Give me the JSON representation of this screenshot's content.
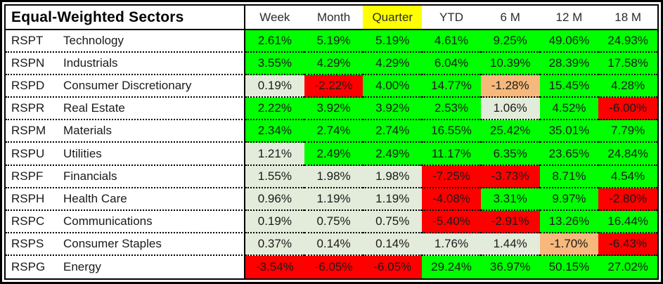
{
  "chart_data": {
    "type": "table",
    "title": "Equal-Weighted Sectors",
    "columns": [
      "Week",
      "Month",
      "Quarter",
      "YTD",
      "6 M",
      "12 M",
      "18 M"
    ],
    "highlighted_column": "Quarter",
    "value_unit": "percent",
    "rows": [
      {
        "ticker": "RSPT",
        "sector": "Technology",
        "values": [
          2.61,
          5.19,
          5.19,
          4.61,
          9.25,
          49.06,
          24.93
        ],
        "cell_colors": [
          "green",
          "green",
          "green",
          "green",
          "green",
          "green",
          "green"
        ]
      },
      {
        "ticker": "RSPN",
        "sector": "Industrials",
        "values": [
          3.55,
          4.29,
          4.29,
          6.04,
          10.39,
          28.39,
          17.58
        ],
        "cell_colors": [
          "green",
          "green",
          "green",
          "green",
          "green",
          "green",
          "green"
        ]
      },
      {
        "ticker": "RSPD",
        "sector": "Consumer Discretionary",
        "values": [
          0.19,
          -2.22,
          4.0,
          14.77,
          -1.28,
          15.45,
          4.28
        ],
        "cell_colors": [
          "pale",
          "red",
          "green",
          "green",
          "orange",
          "green",
          "green"
        ]
      },
      {
        "ticker": "RSPR",
        "sector": "Real Estate",
        "values": [
          2.22,
          3.92,
          3.92,
          2.53,
          1.06,
          4.52,
          -6.0
        ],
        "cell_colors": [
          "green",
          "green",
          "green",
          "green",
          "pale",
          "green",
          "red"
        ]
      },
      {
        "ticker": "RSPM",
        "sector": "Materials",
        "values": [
          2.34,
          2.74,
          2.74,
          16.55,
          25.42,
          35.01,
          7.79
        ],
        "cell_colors": [
          "green",
          "green",
          "green",
          "green",
          "green",
          "green",
          "green"
        ]
      },
      {
        "ticker": "RSPU",
        "sector": "Utilities",
        "values": [
          1.21,
          2.49,
          2.49,
          11.17,
          6.35,
          23.65,
          24.84
        ],
        "cell_colors": [
          "pale",
          "green",
          "green",
          "green",
          "green",
          "green",
          "green"
        ]
      },
      {
        "ticker": "RSPF",
        "sector": "Financials",
        "values": [
          1.55,
          1.98,
          1.98,
          -7.25,
          -3.73,
          8.71,
          4.54
        ],
        "cell_colors": [
          "pale",
          "pale",
          "pale",
          "red",
          "red",
          "green",
          "green"
        ]
      },
      {
        "ticker": "RSPH",
        "sector": "Health Care",
        "values": [
          0.96,
          1.19,
          1.19,
          -4.08,
          3.31,
          9.97,
          -2.8
        ],
        "cell_colors": [
          "pale",
          "pale",
          "pale",
          "red",
          "green",
          "green",
          "red"
        ]
      },
      {
        "ticker": "RSPC",
        "sector": "Communications",
        "values": [
          0.19,
          0.75,
          0.75,
          -5.4,
          -2.91,
          13.26,
          16.44
        ],
        "cell_colors": [
          "pale",
          "pale",
          "pale",
          "red",
          "red",
          "green",
          "green"
        ]
      },
      {
        "ticker": "RSPS",
        "sector": "Consumer Staples",
        "values": [
          0.37,
          0.14,
          0.14,
          1.76,
          1.44,
          -1.7,
          -6.43
        ],
        "cell_colors": [
          "pale",
          "pale",
          "pale",
          "pale",
          "pale",
          "orange",
          "red"
        ]
      },
      {
        "ticker": "RSPG",
        "sector": "Energy",
        "values": [
          -3.54,
          -6.05,
          -6.05,
          29.24,
          36.97,
          50.15,
          27.02
        ],
        "cell_colors": [
          "red",
          "red",
          "red",
          "green",
          "green",
          "green",
          "green"
        ]
      }
    ]
  },
  "colors": {
    "green": "#00ff00",
    "red": "#ff0000",
    "pale": "#e3ebda",
    "orange": "#f6b87b",
    "highlight": "#ffff00"
  }
}
